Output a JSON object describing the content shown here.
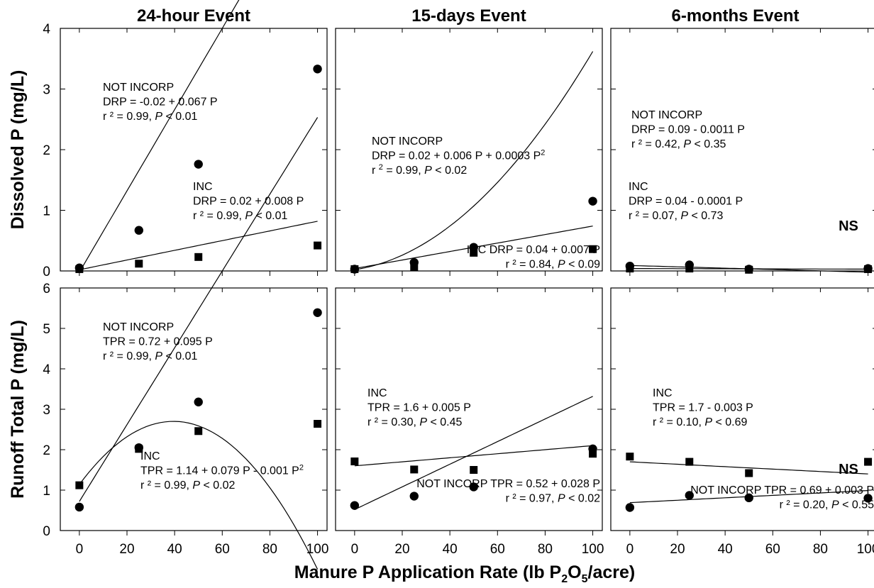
{
  "chart_data": {
    "type": "scatter",
    "x_label_parts": [
      "Manure P Application Rate (lb P",
      "2",
      "O",
      "5",
      "/acre)"
    ],
    "columns": [
      "24-hour Event",
      "15-days Event",
      "6-months Event"
    ],
    "rows": [
      {
        "ylabel": "Dissolved P (mg/L)",
        "ylim": [
          0,
          4
        ],
        "yticks": [
          0,
          1,
          2,
          3,
          4
        ],
        "shaded": false
      },
      {
        "ylabel": "Runoff Total P (mg/L)",
        "ylim": [
          0,
          6
        ],
        "yticks": [
          0,
          1,
          2,
          3,
          4,
          5,
          6
        ],
        "shaded": true
      }
    ],
    "xlim": [
      -8,
      104
    ],
    "xticks": [
      0,
      20,
      40,
      60,
      80,
      100
    ],
    "x": [
      0,
      25,
      50,
      100
    ],
    "panels": [
      {
        "row": 0,
        "col": 0,
        "series": [
          {
            "name": "NOT INCORP",
            "marker": "circle",
            "values": [
              0.05,
              0.67,
              1.76,
              3.33
            ],
            "fit": [
              -0.02,
              0.067
            ]
          },
          {
            "name": "INC",
            "marker": "square",
            "values": [
              0.03,
              0.12,
              0.23,
              0.42
            ],
            "fit": [
              0.02,
              0.008
            ]
          }
        ],
        "annotations": [
          {
            "lines": [
              "NOT INCORP",
              "DRP = -0.02 + 0.067 P",
              "r ² = 0.99, |P| < 0.01"
            ]
          },
          {
            "lines": [
              "INC",
              "DRP = 0.02 + 0.008 P",
              "r ² = 0.99, |P| < 0.01"
            ]
          }
        ]
      },
      {
        "row": 0,
        "col": 1,
        "series": [
          {
            "name": "NOT INCORP",
            "marker": "circle",
            "values": [
              0.03,
              0.14,
              0.39,
              1.15
            ],
            "fit": [
              0.02,
              0.006,
              0.0003
            ]
          },
          {
            "name": "INC",
            "marker": "square",
            "values": [
              0.03,
              0.07,
              0.3,
              0.36
            ],
            "fit": [
              0.04,
              0.007
            ]
          }
        ],
        "annotations": [
          {
            "lines": [
              "NOT INCORP",
              "DRP = 0.02 + 0.006 P + 0.0003 P^2",
              "r ^2 = 0.99, |P| < 0.02"
            ]
          },
          {
            "lines": [
              "INC  DRP = 0.04 + 0.007 P",
              "r ² = 0.84, |P| < 0.09"
            ]
          }
        ]
      },
      {
        "row": 0,
        "col": 2,
        "series": [
          {
            "name": "NOT INCORP",
            "marker": "circle",
            "values": [
              0.08,
              0.1,
              0.03,
              0.04
            ],
            "fit": [
              0.09,
              -0.0011
            ]
          },
          {
            "name": "INC",
            "marker": "square",
            "values": [
              0.04,
              0.04,
              0.02,
              0.03
            ],
            "fit": [
              0.04,
              -0.0001
            ]
          }
        ],
        "annotations": [
          {
            "lines": [
              "NOT INCORP",
              "DRP = 0.09 - 0.0011 P",
              "r ² = 0.42, |P| < 0.35"
            ]
          },
          {
            "lines": [
              "INC",
              "DRP = 0.04 - 0.0001 P",
              "r ² = 0.07, |P| < 0.73"
            ]
          }
        ],
        "ns": "NS"
      },
      {
        "row": 1,
        "col": 0,
        "series": [
          {
            "name": "NOT INCORP",
            "marker": "circle",
            "values": [
              0.58,
              2.05,
              3.18,
              5.39
            ],
            "fit": [
              0.72,
              0.095
            ]
          },
          {
            "name": "INC",
            "marker": "square",
            "values": [
              1.12,
              2.02,
              2.46,
              2.64
            ],
            "fit": [
              1.14,
              0.079,
              -0.001
            ]
          }
        ],
        "annotations": [
          {
            "lines": [
              "NOT INCORP",
              "TPR = 0.72 + 0.095 P",
              "r ² = 0.99, |P| < 0.01"
            ]
          },
          {
            "lines": [
              "INC",
              "TPR = 1.14 + 0.079 P - 0.001 P^2",
              "r ² = 0.99, |P| < 0.02"
            ]
          }
        ]
      },
      {
        "row": 1,
        "col": 1,
        "series": [
          {
            "name": "NOT INCORP",
            "marker": "circle",
            "values": [
              0.62,
              0.85,
              1.08,
              2.02
            ],
            "fit": [
              0.52,
              0.028
            ]
          },
          {
            "name": "INC",
            "marker": "square",
            "values": [
              1.71,
              1.51,
              1.5,
              1.9
            ],
            "fit": [
              1.6,
              0.005
            ]
          }
        ],
        "annotations": [
          {
            "lines": [
              "INC",
              "TPR = 1.6 + 0.005 P",
              "r ² = 0.30, |P| < 0.45"
            ]
          },
          {
            "lines": [
              "NOT INCORP  TPR = 0.52 + 0.028 P",
              "r ² = 0.97, |P| < 0.02"
            ]
          }
        ]
      },
      {
        "row": 1,
        "col": 2,
        "series": [
          {
            "name": "NOT INCORP",
            "marker": "circle",
            "values": [
              0.57,
              0.87,
              0.81,
              0.8
            ],
            "fit": [
              0.69,
              0.003
            ]
          },
          {
            "name": "INC",
            "marker": "square",
            "values": [
              1.83,
              1.7,
              1.42,
              1.7
            ],
            "fit": [
              1.7,
              -0.003
            ]
          }
        ],
        "annotations": [
          {
            "lines": [
              "INC",
              "TPR = 1.7 - 0.003 P",
              "r ² = 0.10, |P| < 0.69"
            ]
          },
          {
            "lines": [
              "NOT INCORP  TPR = 0.69 + 0.003 P",
              "r ² = 0.20, |P| < 0.55"
            ]
          }
        ],
        "ns": "NS"
      }
    ],
    "colors": {
      "plot_bg_top": "#ffffff",
      "plot_bg_bottom": "#e6e6ea",
      "ink": "#000000"
    }
  }
}
